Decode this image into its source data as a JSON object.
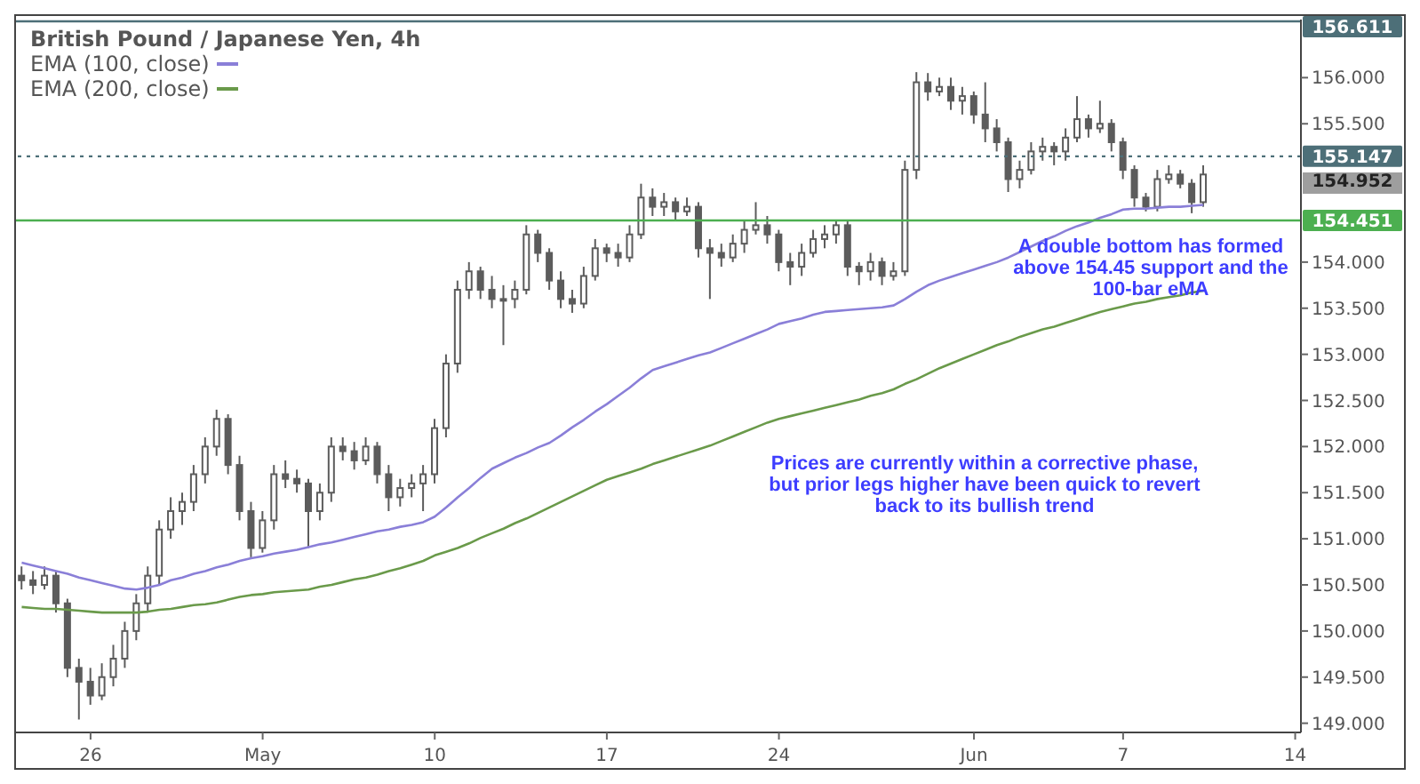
{
  "chart_data": {
    "type": "candlestick",
    "title": "British Pound / Japanese Yen, 4h",
    "categories": [
      null,
      null,
      null,
      null,
      null,
      null,
      "26",
      null,
      null,
      null,
      null,
      null,
      null,
      null,
      null,
      null,
      null,
      null,
      null,
      null,
      null,
      "May",
      null,
      null,
      null,
      null,
      null,
      null,
      null,
      null,
      null,
      null,
      null,
      null,
      null,
      null,
      "10",
      null,
      null,
      null,
      null,
      null,
      null,
      null,
      null,
      null,
      null,
      null,
      null,
      null,
      null,
      "17",
      null,
      null,
      null,
      null,
      null,
      null,
      null,
      null,
      null,
      null,
      null,
      null,
      null,
      null,
      "24",
      null,
      null,
      null,
      null,
      null,
      null,
      null,
      null,
      null,
      null,
      null,
      null,
      null,
      null,
      null,
      null,
      "Jun",
      null,
      null,
      null,
      null,
      null,
      null,
      null,
      null,
      null,
      null,
      null,
      null,
      "7",
      null,
      null,
      null,
      null,
      null,
      null,
      null,
      null,
      null,
      null,
      null,
      null,
      null,
      null,
      "14"
    ],
    "series": [
      {
        "name": "EMA (100, close)",
        "type": "line",
        "color": "#8a7fd8",
        "values": [
          150.74,
          150.71,
          150.68,
          150.65,
          150.62,
          150.58,
          150.55,
          150.52,
          150.49,
          150.46,
          150.45,
          150.47,
          150.5,
          150.55,
          150.58,
          150.62,
          150.65,
          150.69,
          150.72,
          150.76,
          150.79,
          150.81,
          150.84,
          150.86,
          150.88,
          150.91,
          150.94,
          150.96,
          150.99,
          151.02,
          151.05,
          151.08,
          151.1,
          151.13,
          151.15,
          151.18,
          151.24,
          151.34,
          151.45,
          151.55,
          151.66,
          151.76,
          151.82,
          151.88,
          151.93,
          151.99,
          152.04,
          152.12,
          152.21,
          152.29,
          152.38,
          152.46,
          152.55,
          152.64,
          152.74,
          152.83,
          152.87,
          152.91,
          152.95,
          152.99,
          153.02,
          153.07,
          153.12,
          153.17,
          153.22,
          153.27,
          153.33,
          153.36,
          153.39,
          153.43,
          153.46,
          153.47,
          153.48,
          153.49,
          153.5,
          153.51,
          153.53,
          153.6,
          153.68,
          153.75,
          153.8,
          153.84,
          153.88,
          153.92,
          153.96,
          154.0,
          154.05,
          154.11,
          154.17,
          154.23,
          154.28,
          154.34,
          154.39,
          154.43,
          154.48,
          154.52,
          154.57,
          154.58,
          154.58,
          154.59,
          154.6,
          154.6,
          154.61,
          154.62,
          null,
          null,
          null,
          null,
          null,
          null,
          null,
          null
        ]
      },
      {
        "name": "EMA (200, close)",
        "type": "line",
        "color": "#6a9a4a",
        "values": [
          150.26,
          150.25,
          150.24,
          150.24,
          150.23,
          150.22,
          150.21,
          150.2,
          150.2,
          150.2,
          150.2,
          150.21,
          150.23,
          150.24,
          150.26,
          150.28,
          150.29,
          150.31,
          150.34,
          150.37,
          150.39,
          150.4,
          150.42,
          150.43,
          150.44,
          150.45,
          150.48,
          150.5,
          150.53,
          150.56,
          150.58,
          150.61,
          150.65,
          150.68,
          150.72,
          150.76,
          150.82,
          150.86,
          150.9,
          150.95,
          151.01,
          151.06,
          151.11,
          151.17,
          151.22,
          151.28,
          151.34,
          151.4,
          151.46,
          151.52,
          151.58,
          151.64,
          151.68,
          151.72,
          151.76,
          151.81,
          151.85,
          151.89,
          151.93,
          151.97,
          152.01,
          152.06,
          152.11,
          152.16,
          152.21,
          152.26,
          152.3,
          152.33,
          152.36,
          152.39,
          152.42,
          152.45,
          152.48,
          152.51,
          152.55,
          152.58,
          152.62,
          152.68,
          152.73,
          152.79,
          152.85,
          152.9,
          152.95,
          153.0,
          153.05,
          153.1,
          153.14,
          153.19,
          153.23,
          153.27,
          153.3,
          153.34,
          153.38,
          153.42,
          153.46,
          153.49,
          153.52,
          153.55,
          153.57,
          153.6,
          153.62,
          153.64,
          153.67,
          153.69,
          null,
          null,
          null,
          null,
          null,
          null,
          null,
          null
        ]
      },
      {
        "color": "#5c5c5c",
        "ohlc": [
          [
            150.6,
            150.7,
            150.45,
            150.55
          ],
          [
            150.55,
            150.65,
            150.4,
            150.5
          ],
          [
            150.5,
            150.7,
            150.45,
            150.6
          ],
          [
            150.6,
            150.65,
            150.2,
            150.3
          ],
          [
            150.3,
            150.35,
            149.5,
            149.6
          ],
          [
            149.6,
            149.7,
            149.04,
            149.45
          ],
          [
            149.45,
            149.6,
            149.2,
            149.3
          ],
          [
            149.3,
            149.65,
            149.25,
            149.5
          ],
          [
            149.5,
            149.85,
            149.4,
            149.7
          ],
          [
            149.7,
            150.1,
            149.6,
            150.0
          ],
          [
            150.0,
            150.4,
            149.9,
            150.3
          ],
          [
            150.3,
            150.7,
            150.2,
            150.6
          ],
          [
            150.6,
            151.2,
            150.5,
            151.1
          ],
          [
            151.1,
            151.45,
            151.0,
            151.3
          ],
          [
            151.3,
            151.5,
            151.15,
            151.4
          ],
          [
            151.4,
            151.8,
            151.3,
            151.7
          ],
          [
            151.7,
            152.1,
            151.6,
            152.0
          ],
          [
            152.0,
            152.4,
            151.9,
            152.3
          ],
          [
            152.3,
            152.35,
            151.7,
            151.8
          ],
          [
            151.8,
            151.9,
            151.2,
            151.3
          ],
          [
            151.3,
            151.4,
            150.8,
            150.9
          ],
          [
            150.9,
            151.3,
            150.85,
            151.2
          ],
          [
            151.2,
            151.8,
            151.1,
            151.7
          ],
          [
            151.7,
            151.85,
            151.55,
            151.65
          ],
          [
            151.65,
            151.75,
            151.5,
            151.6
          ],
          [
            151.6,
            151.65,
            150.9,
            151.3
          ],
          [
            151.3,
            151.6,
            151.2,
            151.5
          ],
          [
            151.5,
            152.1,
            151.4,
            152.0
          ],
          [
            152.0,
            152.1,
            151.85,
            151.95
          ],
          [
            151.95,
            152.05,
            151.75,
            151.85
          ],
          [
            151.85,
            152.1,
            151.8,
            152.0
          ],
          [
            152.0,
            152.05,
            151.6,
            151.7
          ],
          [
            151.7,
            151.8,
            151.3,
            151.45
          ],
          [
            151.45,
            151.65,
            151.35,
            151.55
          ],
          [
            151.55,
            151.7,
            151.45,
            151.6
          ],
          [
            151.6,
            151.8,
            151.3,
            151.7
          ],
          [
            151.7,
            152.3,
            151.6,
            152.2
          ],
          [
            152.2,
            153.0,
            152.1,
            152.9
          ],
          [
            152.9,
            153.8,
            152.8,
            153.7
          ],
          [
            153.7,
            154.0,
            153.6,
            153.9
          ],
          [
            153.9,
            153.95,
            153.6,
            153.7
          ],
          [
            153.7,
            153.85,
            153.5,
            153.6
          ],
          [
            153.6,
            153.75,
            153.1,
            153.6
          ],
          [
            153.6,
            153.8,
            153.5,
            153.7
          ],
          [
            153.7,
            154.4,
            153.65,
            154.3
          ],
          [
            154.3,
            154.35,
            154.0,
            154.1
          ],
          [
            154.1,
            154.15,
            153.7,
            153.8
          ],
          [
            153.8,
            153.9,
            153.5,
            153.6
          ],
          [
            153.6,
            153.7,
            153.45,
            153.55
          ],
          [
            153.55,
            153.95,
            153.5,
            153.85
          ],
          [
            153.85,
            154.25,
            153.8,
            154.15
          ],
          [
            154.15,
            154.2,
            154.0,
            154.1
          ],
          [
            154.1,
            154.2,
            153.95,
            154.05
          ],
          [
            154.05,
            154.4,
            154.0,
            154.3
          ],
          [
            154.3,
            154.85,
            154.25,
            154.7
          ],
          [
            154.7,
            154.8,
            154.5,
            154.6
          ],
          [
            154.6,
            154.75,
            154.5,
            154.65
          ],
          [
            154.65,
            154.7,
            154.45,
            154.55
          ],
          [
            154.55,
            154.7,
            154.5,
            154.6
          ],
          [
            154.6,
            154.65,
            154.05,
            154.15
          ],
          [
            154.15,
            154.25,
            153.6,
            154.1
          ],
          [
            154.1,
            154.2,
            153.95,
            154.05
          ],
          [
            154.05,
            154.3,
            154.0,
            154.2
          ],
          [
            154.2,
            154.45,
            154.1,
            154.35
          ],
          [
            154.35,
            154.65,
            154.3,
            154.4
          ],
          [
            154.4,
            154.5,
            154.2,
            154.3
          ],
          [
            154.3,
            154.35,
            153.9,
            154.0
          ],
          [
            154.0,
            154.1,
            153.75,
            153.95
          ],
          [
            153.95,
            154.2,
            153.85,
            154.1
          ],
          [
            154.1,
            154.35,
            154.05,
            154.25
          ],
          [
            154.25,
            154.4,
            154.15,
            154.3
          ],
          [
            154.3,
            154.45,
            154.2,
            154.4
          ],
          [
            154.4,
            154.45,
            153.85,
            153.95
          ],
          [
            153.95,
            154.0,
            153.75,
            153.9
          ],
          [
            153.9,
            154.1,
            153.8,
            154.0
          ],
          [
            154.0,
            154.05,
            153.75,
            153.85
          ],
          [
            153.85,
            154.0,
            153.8,
            153.9
          ],
          [
            153.9,
            155.1,
            153.85,
            155.0
          ],
          [
            155.0,
            156.06,
            154.9,
            155.95
          ],
          [
            155.95,
            156.05,
            155.75,
            155.85
          ],
          [
            155.85,
            156.0,
            155.8,
            155.9
          ],
          [
            155.9,
            156.0,
            155.65,
            155.75
          ],
          [
            155.75,
            155.9,
            155.6,
            155.8
          ],
          [
            155.8,
            155.85,
            155.5,
            155.6
          ],
          [
            155.6,
            155.95,
            155.3,
            155.45
          ],
          [
            155.45,
            155.55,
            155.2,
            155.3
          ],
          [
            155.3,
            155.35,
            154.76,
            154.9
          ],
          [
            154.9,
            155.1,
            154.8,
            155.0
          ],
          [
            155.0,
            155.3,
            154.95,
            155.2
          ],
          [
            155.2,
            155.35,
            155.1,
            155.25
          ],
          [
            155.25,
            155.3,
            155.05,
            155.2
          ],
          [
            155.2,
            155.45,
            155.1,
            155.35
          ],
          [
            155.35,
            155.8,
            155.3,
            155.55
          ],
          [
            155.55,
            155.6,
            155.35,
            155.45
          ],
          [
            155.45,
            155.75,
            155.4,
            155.5
          ],
          [
            155.5,
            155.55,
            155.2,
            155.3
          ],
          [
            155.3,
            155.35,
            154.9,
            155.0
          ],
          [
            155.0,
            155.05,
            154.6,
            154.7
          ],
          [
            154.7,
            154.75,
            154.55,
            154.6
          ],
          [
            154.6,
            155.0,
            154.55,
            154.9
          ],
          [
            154.9,
            155.05,
            154.85,
            154.95
          ],
          [
            154.95,
            155.0,
            154.8,
            154.85
          ],
          [
            154.85,
            154.9,
            154.53,
            154.65
          ],
          [
            154.65,
            155.05,
            154.6,
            154.95
          ],
          null,
          null,
          null,
          null,
          null,
          null,
          null,
          null
        ]
      }
    ],
    "ylim": [
      148.9,
      156.63
    ],
    "yticks": [
      {
        "value": 149,
        "label": "149.000"
      },
      {
        "value": 149.5,
        "label": "149.500"
      },
      {
        "value": 150,
        "label": "150.000"
      },
      {
        "value": 150.5,
        "label": "150.500"
      },
      {
        "value": 151,
        "label": "151.000"
      },
      {
        "value": 151.5,
        "label": "151.500"
      },
      {
        "value": 152,
        "label": "152.000"
      },
      {
        "value": 152.5,
        "label": "152.500"
      },
      {
        "value": 153,
        "label": "153.000"
      },
      {
        "value": 153.5,
        "label": "153.500"
      },
      {
        "value": 154,
        "label": "154.000"
      },
      {
        "value": 155.5,
        "label": "155.500"
      },
      {
        "value": 156,
        "label": "156.000"
      }
    ],
    "ref_lines": [
      {
        "axis": "y",
        "value": 156.611,
        "label": "156.611",
        "color": "#4d6f78"
      },
      {
        "axis": "y",
        "value": 155.147,
        "label": "155.147",
        "color": "#4d6f78",
        "line_style": "dotted"
      },
      {
        "axis": "y",
        "value": 154.451,
        "label": "154.451",
        "color": "#4caf50"
      }
    ],
    "annotations": [
      "154.952",
      "A double bottom has formed above 154.45 support and the 100-bar eMA",
      "Prices are currently within a corrective phase, but prior legs higher have been quick to revert back to its bullish trend"
    ],
    "legend": "top left",
    "grid": false
  }
}
